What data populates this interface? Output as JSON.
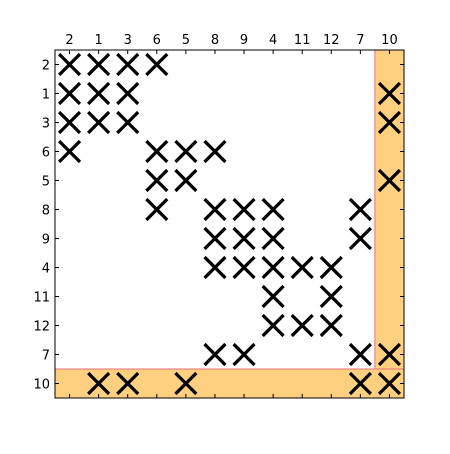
{
  "chart_data": {
    "type": "heatmap",
    "title": "",
    "xlabel": "",
    "ylabel": "",
    "column_labels": [
      "2",
      "1",
      "3",
      "6",
      "5",
      "8",
      "9",
      "4",
      "11",
      "12",
      "7",
      "10"
    ],
    "row_labels": [
      "2",
      "1",
      "3",
      "6",
      "5",
      "8",
      "9",
      "4",
      "11",
      "12",
      "7",
      "10"
    ],
    "marker": "X",
    "highlighted_row": 11,
    "highlighted_column": 11,
    "matrix": [
      [
        1,
        1,
        1,
        1,
        0,
        0,
        0,
        0,
        0,
        0,
        0,
        0
      ],
      [
        1,
        1,
        1,
        0,
        0,
        0,
        0,
        0,
        0,
        0,
        0,
        1
      ],
      [
        1,
        1,
        1,
        0,
        0,
        0,
        0,
        0,
        0,
        0,
        0,
        1
      ],
      [
        1,
        0,
        0,
        1,
        1,
        1,
        0,
        0,
        0,
        0,
        0,
        0
      ],
      [
        0,
        0,
        0,
        1,
        1,
        0,
        0,
        0,
        0,
        0,
        0,
        1
      ],
      [
        0,
        0,
        0,
        1,
        0,
        1,
        1,
        1,
        0,
        0,
        1,
        0
      ],
      [
        0,
        0,
        0,
        0,
        0,
        1,
        1,
        1,
        0,
        0,
        1,
        0
      ],
      [
        0,
        0,
        0,
        0,
        0,
        1,
        1,
        1,
        1,
        1,
        0,
        0
      ],
      [
        0,
        0,
        0,
        0,
        0,
        0,
        0,
        1,
        0,
        1,
        0,
        0
      ],
      [
        0,
        0,
        0,
        0,
        0,
        0,
        0,
        1,
        1,
        1,
        0,
        0
      ],
      [
        0,
        0,
        0,
        0,
        0,
        1,
        1,
        0,
        0,
        0,
        1,
        1
      ],
      [
        0,
        1,
        1,
        0,
        1,
        0,
        0,
        0,
        0,
        0,
        1,
        1
      ]
    ],
    "colors": {
      "highlight_fill": "#ffd080",
      "highlight_edge": "#e8707a",
      "marker": "#000000",
      "frame": "#000000"
    },
    "grid": false
  }
}
